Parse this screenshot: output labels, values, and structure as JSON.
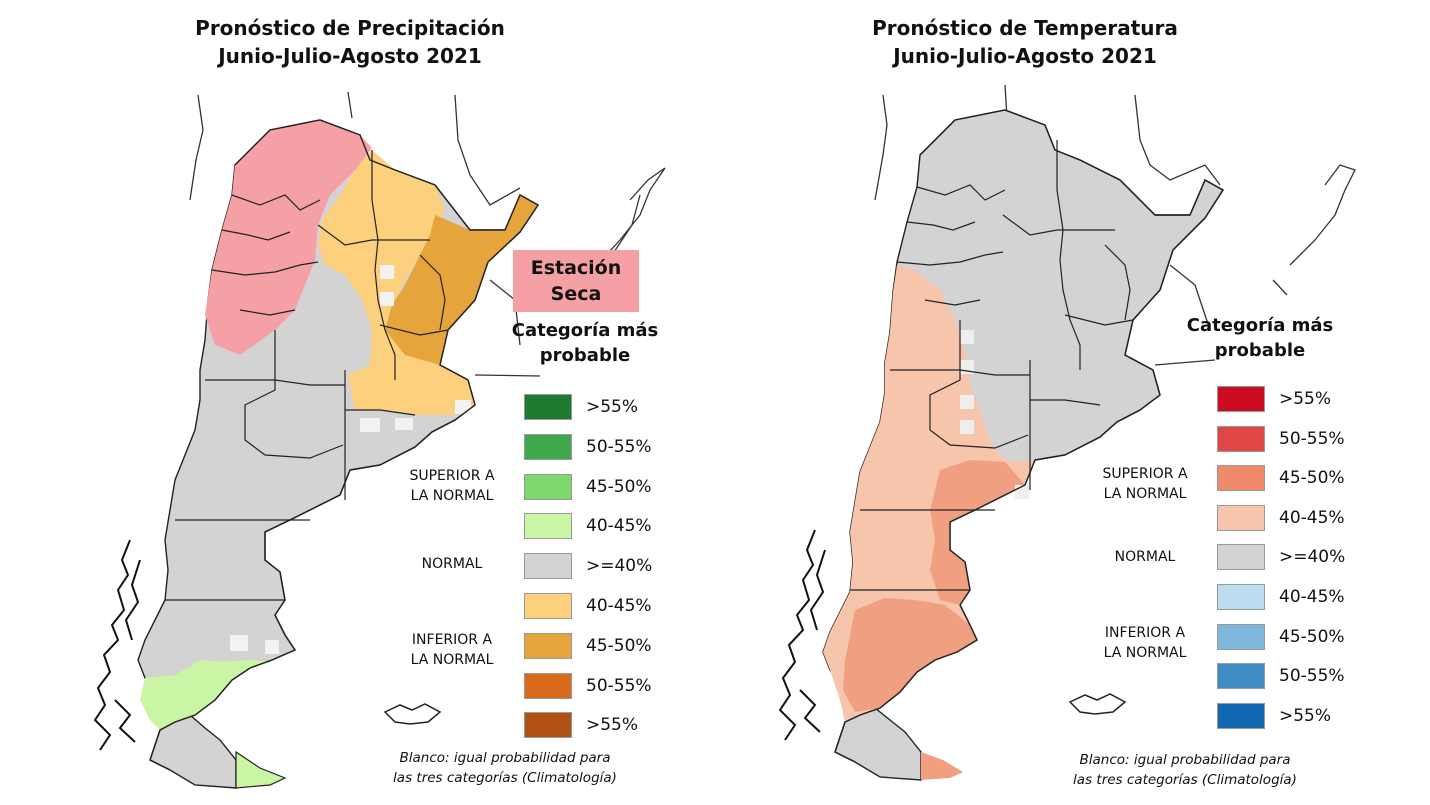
{
  "precip": {
    "title_line1": "Pronóstico de Precipitación",
    "title_line2": "Junio-Julio-Agosto 2021",
    "badge_line1": "Estación",
    "badge_line2": "Seca",
    "legend_title_line1": "Categoría más",
    "legend_title_line2": "probable",
    "legend": [
      {
        "label": ">55%",
        "color": "#1d7a2e"
      },
      {
        "label": "50-55%",
        "color": "#3fa84a"
      },
      {
        "label": "45-50%",
        "color": "#7fd86b"
      },
      {
        "label": "40-45%",
        "color": "#c9f5a4"
      },
      {
        "label": ">=40%",
        "color": "#d3d3d3"
      },
      {
        "label": "40-45%",
        "color": "#fcd07c"
      },
      {
        "label": "45-50%",
        "color": "#e6a43c"
      },
      {
        "label": "50-55%",
        "color": "#d96a1a"
      },
      {
        "label": ">55%",
        "color": "#b05012"
      }
    ],
    "cat_above_1": "SUPERIOR A",
    "cat_above_2": "LA NORMAL",
    "cat_normal": "NORMAL",
    "cat_below_1": "INFERIOR A",
    "cat_below_2": "LA NORMAL",
    "note_line1": "Blanco: igual probabilidad para",
    "note_line2": "las tres categorías (Climatología)"
  },
  "temp": {
    "title_line1": "Pronóstico de Temperatura",
    "title_line2": "Junio-Julio-Agosto 2021",
    "legend_title_line1": "Categoría más",
    "legend_title_line2": "probable",
    "legend": [
      {
        "label": ">55%",
        "color": "#cc0a20"
      },
      {
        "label": "50-55%",
        "color": "#e04848"
      },
      {
        "label": "45-50%",
        "color": "#f08a6a"
      },
      {
        "label": "40-45%",
        "color": "#f7c4ac"
      },
      {
        "label": ">=40%",
        "color": "#d3d3d3"
      },
      {
        "label": "40-45%",
        "color": "#bcdcef"
      },
      {
        "label": "45-50%",
        "color": "#7fb8dc"
      },
      {
        "label": "50-55%",
        "color": "#3f8cc4"
      },
      {
        "label": ">55%",
        "color": "#1068b0"
      }
    ],
    "cat_above_1": "SUPERIOR A",
    "cat_above_2": "LA NORMAL",
    "cat_normal": "NORMAL",
    "cat_below_1": "INFERIOR A",
    "cat_below_2": "LA NORMAL",
    "note_line1": "Blanco: igual probabilidad para",
    "note_line2": "las tres categorías (Climatología)"
  }
}
